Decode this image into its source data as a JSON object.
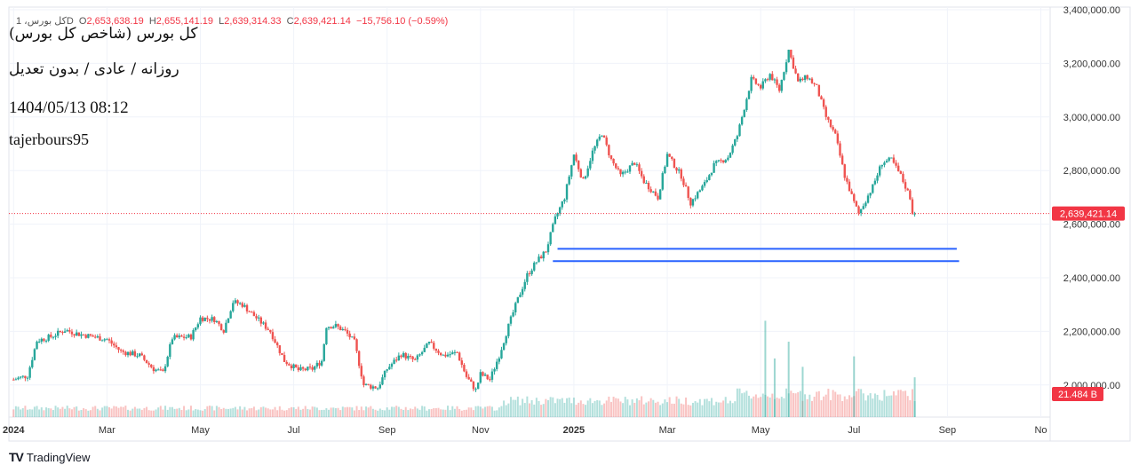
{
  "ohlc": {
    "symbol": "کل بورس، 1D",
    "open_label": "O",
    "open": "2,653,638.19",
    "high_label": "H",
    "high": "2,655,141.19",
    "low_label": "L",
    "low": "2,639,314.33",
    "close_label": "C",
    "close": "2,639,421.14",
    "change": "−15,756.10 (−0.59%)"
  },
  "overlay": {
    "line1": "کل بورس (شاخص کل بورس)",
    "line2": "روزانه / عادی / بدون تعدیل",
    "line3": "1404/05/13 08:12",
    "line4": "tajerbours95"
  },
  "brand": {
    "name": "TradingView",
    "logo": "TV"
  },
  "colors": {
    "up": "#26a69a",
    "down": "#ef5350",
    "line": "#2962ff",
    "price_tag": "#f23645"
  },
  "chart_data": {
    "type": "candlestick",
    "title": "کل بورس (شاخص کل بورس)",
    "y_axis": {
      "ylim": [
        1880000,
        3410000
      ],
      "ticks": [
        2000000,
        2200000,
        2400000,
        2600000,
        2800000,
        3000000,
        3200000,
        3400000
      ],
      "tick_labels": [
        "2,000,000.00",
        "2,200,000.00",
        "2,400,000.00",
        "2,600,000.00",
        "2,800,000.00",
        "3,000,000.00",
        "3,200,000.00",
        "3,400,000.00"
      ]
    },
    "x_axis": {
      "labels": [
        "2024",
        "Mar",
        "May",
        "Jul",
        "Sep",
        "Nov",
        "2025",
        "Mar",
        "May",
        "Jul",
        "Sep",
        "No"
      ],
      "months": [
        0,
        2,
        4,
        6,
        8,
        10,
        12,
        14,
        16,
        18,
        20,
        22
      ],
      "xlim": [
        -0.1,
        22.2
      ]
    },
    "last_price": {
      "value": 2639421.14,
      "label": "2,639,421.14"
    },
    "volume_label": "21.484 B",
    "horizontal_lines": [
      {
        "value": 2508000,
        "from_month": 11.65,
        "to_month": 20.2
      },
      {
        "value": 2462000,
        "from_month": 11.55,
        "to_month": 20.25
      }
    ],
    "series_close": [
      [
        0.0,
        2020000
      ],
      [
        0.3,
        2035000
      ],
      [
        0.5,
        2165000
      ],
      [
        0.8,
        2180000
      ],
      [
        1.1,
        2205000
      ],
      [
        1.4,
        2190000
      ],
      [
        1.7,
        2180000
      ],
      [
        2.0,
        2170000
      ],
      [
        2.3,
        2125000
      ],
      [
        2.7,
        2110000
      ],
      [
        3.0,
        2060000
      ],
      [
        3.2,
        2045000
      ],
      [
        3.4,
        2175000
      ],
      [
        3.8,
        2180000
      ],
      [
        4.0,
        2250000
      ],
      [
        4.3,
        2245000
      ],
      [
        4.5,
        2205000
      ],
      [
        4.7,
        2310000
      ],
      [
        4.9,
        2300000
      ],
      [
        5.2,
        2250000
      ],
      [
        5.5,
        2200000
      ],
      [
        5.8,
        2090000
      ],
      [
        6.1,
        2055000
      ],
      [
        6.4,
        2060000
      ],
      [
        6.6,
        2090000
      ],
      [
        6.7,
        2220000
      ],
      [
        6.9,
        2220000
      ],
      [
        7.1,
        2200000
      ],
      [
        7.3,
        2160000
      ],
      [
        7.5,
        2000000
      ],
      [
        7.8,
        1990000
      ],
      [
        8.0,
        2060000
      ],
      [
        8.3,
        2115000
      ],
      [
        8.6,
        2090000
      ],
      [
        8.9,
        2155000
      ],
      [
        9.2,
        2110000
      ],
      [
        9.5,
        2120000
      ],
      [
        9.7,
        2030000
      ],
      [
        9.9,
        1980000
      ],
      [
        10.0,
        2040000
      ],
      [
        10.2,
        2020000
      ],
      [
        10.4,
        2110000
      ],
      [
        10.6,
        2220000
      ],
      [
        10.8,
        2320000
      ],
      [
        11.0,
        2410000
      ],
      [
        11.2,
        2460000
      ],
      [
        11.4,
        2500000
      ],
      [
        11.6,
        2620000
      ],
      [
        11.8,
        2700000
      ],
      [
        12.0,
        2860000
      ],
      [
        12.2,
        2760000
      ],
      [
        12.4,
        2870000
      ],
      [
        12.6,
        2940000
      ],
      [
        12.8,
        2840000
      ],
      [
        13.0,
        2780000
      ],
      [
        13.3,
        2830000
      ],
      [
        13.5,
        2760000
      ],
      [
        13.8,
        2700000
      ],
      [
        14.0,
        2860000
      ],
      [
        14.3,
        2780000
      ],
      [
        14.5,
        2680000
      ],
      [
        14.8,
        2750000
      ],
      [
        15.0,
        2820000
      ],
      [
        15.3,
        2850000
      ],
      [
        15.5,
        2930000
      ],
      [
        15.8,
        3140000
      ],
      [
        16.0,
        3110000
      ],
      [
        16.2,
        3160000
      ],
      [
        16.4,
        3100000
      ],
      [
        16.6,
        3250000
      ],
      [
        16.8,
        3130000
      ],
      [
        17.0,
        3150000
      ],
      [
        17.2,
        3110000
      ],
      [
        17.4,
        3000000
      ],
      [
        17.6,
        2930000
      ],
      [
        17.8,
        2780000
      ],
      [
        18.0,
        2680000
      ],
      [
        18.1,
        2640000
      ],
      [
        18.4,
        2740000
      ],
      [
        18.6,
        2830000
      ],
      [
        18.8,
        2840000
      ],
      [
        19.0,
        2780000
      ],
      [
        19.2,
        2700000
      ],
      [
        19.3,
        2639421
      ]
    ],
    "volume_spikes": [
      {
        "month": 16.1,
        "value": 0.92
      },
      {
        "month": 16.3,
        "value": 0.56
      },
      {
        "month": 16.6,
        "value": 0.72
      },
      {
        "month": 16.9,
        "value": 0.48
      },
      {
        "month": 18.0,
        "value": 0.58
      },
      {
        "month": 19.3,
        "value": 0.38
      }
    ]
  }
}
